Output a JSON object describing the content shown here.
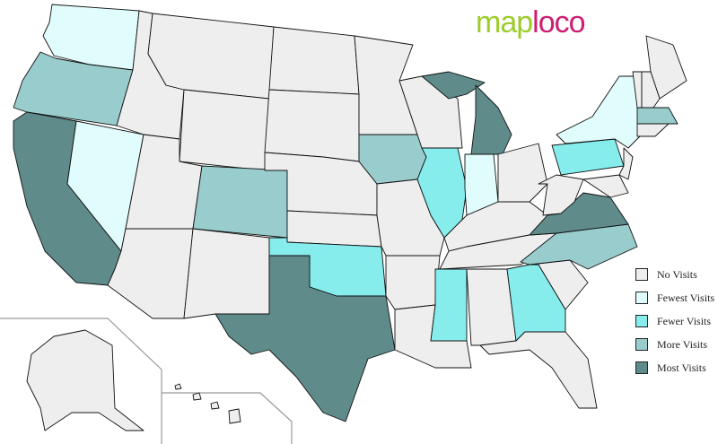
{
  "logo": {
    "part1": "map",
    "part2": "loco"
  },
  "legend": [
    {
      "key": "none",
      "label": "No Visits",
      "color": "#eeeeee"
    },
    {
      "key": "fewest",
      "label": "Fewest Visits",
      "color": "#e0fcfc"
    },
    {
      "key": "fewer",
      "label": "Fewer Visits",
      "color": "#86ecec"
    },
    {
      "key": "more",
      "label": "More Visits",
      "color": "#99cccc"
    },
    {
      "key": "most",
      "label": "Most Visits",
      "color": "#5f8b8b"
    }
  ],
  "visits": {
    "WA": "fewest",
    "OR": "more",
    "CA": "most",
    "NV": "fewest",
    "ID": "none",
    "MT": "none",
    "WY": "none",
    "UT": "none",
    "AZ": "none",
    "CO": "more",
    "NM": "none",
    "ND": "none",
    "SD": "none",
    "NE": "none",
    "KS": "none",
    "OK": "fewer",
    "TX": "most",
    "MN": "none",
    "IA": "more",
    "MO": "none",
    "AR": "none",
    "LA": "none",
    "WI": "none",
    "IL": "fewer",
    "MI": "most",
    "IN": "fewest",
    "OH": "none",
    "KY": "none",
    "TN": "none",
    "MS": "fewer",
    "AL": "none",
    "GA": "fewer",
    "FL": "none",
    "SC": "none",
    "NC": "more",
    "VA": "most",
    "WV": "none",
    "PA": "fewer",
    "NY": "fewest",
    "MD": "none",
    "NJ": "none",
    "ME": "none",
    "NH": "none",
    "VT": "none",
    "MA": "more",
    "CT": "none",
    "AK": "none",
    "HI": "none"
  }
}
